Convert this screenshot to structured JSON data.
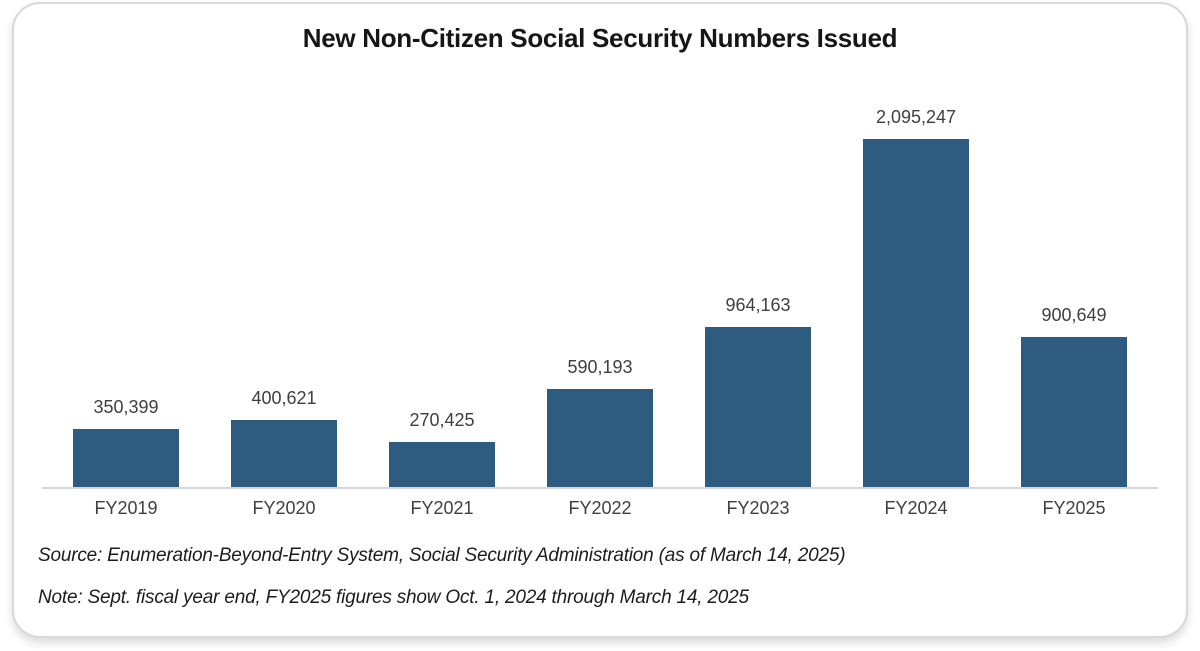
{
  "chart_data": {
    "type": "bar",
    "title": "New Non-Citizen Social Security Numbers Issued",
    "categories": [
      "FY2019",
      "FY2020",
      "FY2021",
      "FY2022",
      "FY2023",
      "FY2024",
      "FY2025"
    ],
    "values": [
      350399,
      400621,
      270425,
      590193,
      964163,
      2095247,
      900649
    ],
    "value_labels": [
      "350,399",
      "400,621",
      "270,425",
      "590,193",
      "964,163",
      "2,095,247",
      "900,649"
    ],
    "xlabel": "",
    "ylabel": "",
    "ylim": [
      0,
      2095247
    ],
    "grid": false,
    "legend": false,
    "bar_color": "#2e5c81",
    "axis_line_color": "#d6d6d6",
    "label_color": "#3f3f3f",
    "source": "Source: Enumeration-Beyond-Entry System, Social Security Administration (as of March 14, 2025)",
    "note": "Note: Sept. fiscal year end, FY2025 figures show Oct. 1, 2024 through March 14, 2025"
  }
}
